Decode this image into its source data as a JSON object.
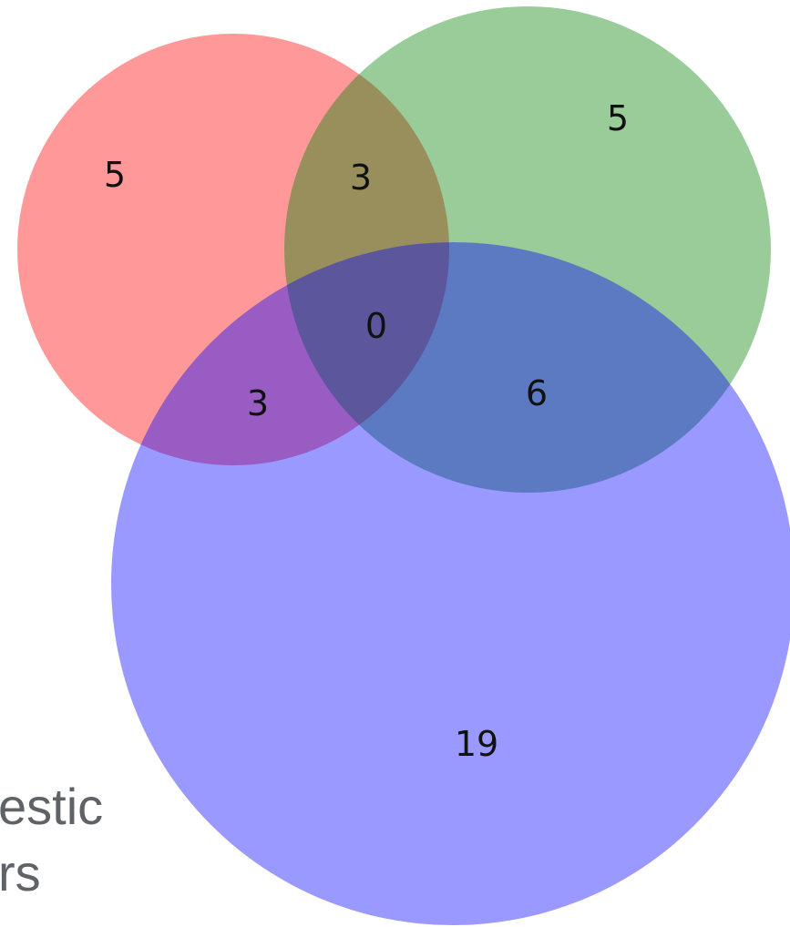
{
  "background_text": [
    "estic",
    "rs"
  ],
  "venn": {
    "type": "venn3",
    "sets": [
      {
        "id": "A",
        "color": "#ff0000"
      },
      {
        "id": "B",
        "color": "#008000"
      },
      {
        "id": "C",
        "color": "#0000ff"
      }
    ],
    "regions": {
      "A_only": "5",
      "B_only": "5",
      "C_only": "19",
      "AB": "3",
      "AC": "3",
      "BC": "6",
      "ABC": "0"
    }
  }
}
